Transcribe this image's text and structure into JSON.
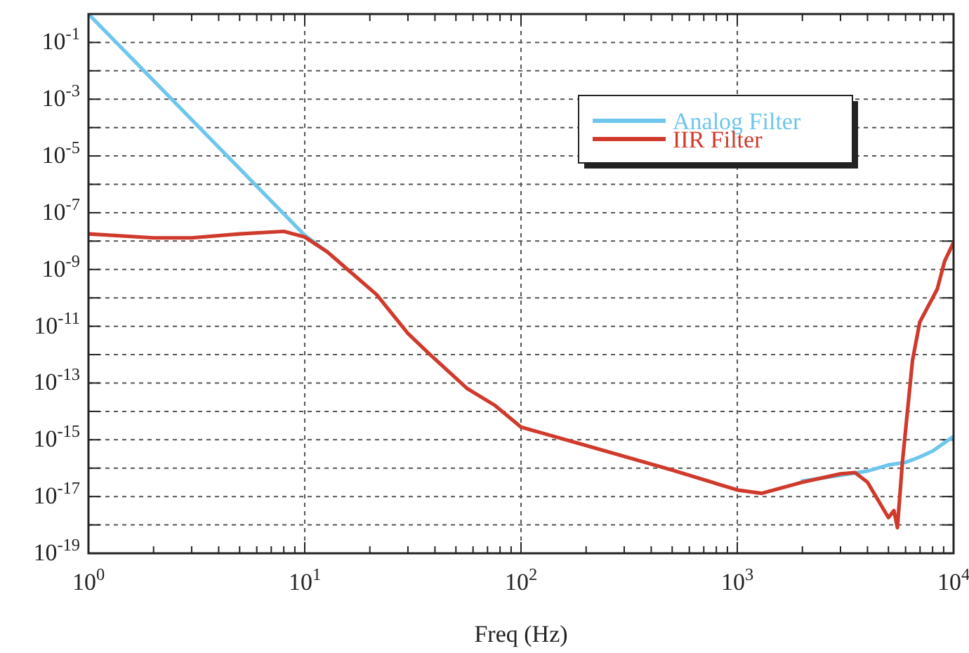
{
  "chart_data": {
    "type": "line",
    "xlabel": "Freq (Hz)",
    "log": "xy",
    "grid": true,
    "legend": "top right",
    "line_style": "solid",
    "marker": "none",
    "xlim": [
      1,
      10000
    ],
    "ylim": [
      1e-19,
      1
    ],
    "xticks": [
      {
        "value": 1,
        "label": "10$^{0}$"
      },
      {
        "value": 2,
        "label": null
      },
      {
        "value": 3,
        "label": null
      },
      {
        "value": 4,
        "label": null
      },
      {
        "value": 5,
        "label": null
      },
      {
        "value": 6,
        "label": null
      },
      {
        "value": 7,
        "label": null
      },
      {
        "value": 8,
        "label": null
      },
      {
        "value": 9,
        "label": null
      },
      {
        "value": 10,
        "label": "10$^{1}$"
      },
      {
        "value": 20,
        "label": null
      },
      {
        "value": 30,
        "label": null
      },
      {
        "value": 40,
        "label": null
      },
      {
        "value": 50,
        "label": null
      },
      {
        "value": 60,
        "label": null
      },
      {
        "value": 70,
        "label": null
      },
      {
        "value": 80,
        "label": null
      },
      {
        "value": 90,
        "label": null
      },
      {
        "value": 100,
        "label": "10$^{2}$"
      },
      {
        "value": 200,
        "label": null
      },
      {
        "value": 300,
        "label": null
      },
      {
        "value": 400,
        "label": null
      },
      {
        "value": 500,
        "label": null
      },
      {
        "value": 600,
        "label": null
      },
      {
        "value": 700,
        "label": null
      },
      {
        "value": 800,
        "label": null
      },
      {
        "value": 900,
        "label": null
      },
      {
        "value": 1000,
        "label": "10$^{3}$"
      },
      {
        "value": 2000,
        "label": null
      },
      {
        "value": 3000,
        "label": null
      },
      {
        "value": 4000,
        "label": null
      },
      {
        "value": 5000,
        "label": null
      },
      {
        "value": 6000,
        "label": null
      },
      {
        "value": 7000,
        "label": null
      },
      {
        "value": 8000,
        "label": null
      },
      {
        "value": 9000,
        "label": null
      },
      {
        "value": 10000,
        "label": "10$^{4}$"
      }
    ],
    "yticks": [
      {
        "value": 1e-19,
        "label": "10$^{-19}$"
      },
      {
        "value": 1e-18,
        "label": null
      },
      {
        "value": 1e-17,
        "label": "10$^{-17}$"
      },
      {
        "value": 1e-16,
        "label": null
      },
      {
        "value": 1e-15,
        "label": "10$^{-15}$"
      },
      {
        "value": 1e-14,
        "label": null
      },
      {
        "value": 1e-13,
        "label": "10$^{-13}$"
      },
      {
        "value": 1e-12,
        "label": null
      },
      {
        "value": 1e-11,
        "label": "10$^{-11}$"
      },
      {
        "value": 1e-10,
        "label": null
      },
      {
        "value": 1e-09,
        "label": "10$^{-9}$"
      },
      {
        "value": 1e-08,
        "label": null
      },
      {
        "value": 1e-07,
        "label": "10$^{-7}$"
      },
      {
        "value": 1e-06,
        "label": null
      },
      {
        "value": 1e-05,
        "label": "10$^{-5}$"
      },
      {
        "value": 0.0001,
        "label": null
      },
      {
        "value": 0.001,
        "label": "10$^{-3}$"
      },
      {
        "value": 0.01,
        "label": null
      },
      {
        "value": 0.1,
        "label": "10$^{-1}$"
      },
      {
        "value": 1,
        "label": null
      }
    ],
    "series": [
      {
        "name": "Analog Filter",
        "color": "#6ec6ec",
        "x": [
          1,
          10,
          12.8,
          21.5,
          30,
          38,
          56.5,
          76,
          100,
          200,
          500,
          1000,
          1300,
          2000,
          3000,
          4000,
          5000,
          6000,
          7000,
          8000,
          10000
        ],
        "values": [
          1,
          1.6e-08,
          4e-09,
          null,
          null,
          null,
          null,
          null,
          null,
          null,
          null,
          null,
          null,
          3.5e-17,
          5.6e-17,
          7.9e-17,
          1.3e-16,
          1.6e-16,
          2.5e-16,
          4e-16,
          1.3e-15
        ]
      },
      {
        "name": "IIR Filter",
        "color": "#d03a2c",
        "x": [
          1,
          2,
          3,
          5,
          8,
          10,
          12.8,
          21.5,
          30,
          38,
          56.5,
          76,
          100,
          200,
          500,
          1000,
          1300,
          2000,
          3000,
          3500,
          4000,
          4500,
          5000,
          5300,
          5500,
          5800,
          6460,
          6980,
          8400,
          9100,
          10000
        ],
        "values": [
          1.8e-08,
          1.3e-08,
          1.3e-08,
          1.8e-08,
          2.2e-08,
          1.4e-08,
          4e-09,
          1.3e-10,
          5.6e-12,
          1e-12,
          6.3e-14,
          1.6e-14,
          2.8e-15,
          6.3e-16,
          8.5e-17,
          1.7e-17,
          1.3e-17,
          3.2e-17,
          6.3e-17,
          7e-17,
          3.2e-17,
          7e-18,
          1.8e-18,
          3.2e-18,
          8e-19,
          1.6e-16,
          6.3e-13,
          1.4e-11,
          2e-10,
          2e-09,
          8.9e-09
        ]
      }
    ]
  }
}
